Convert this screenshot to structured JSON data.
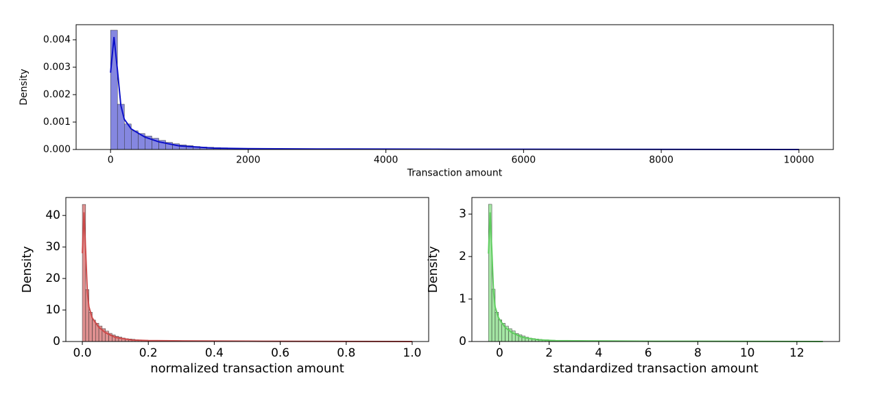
{
  "chart_data": [
    {
      "type": "histogram",
      "xlabel": "Transaction amount",
      "ylabel": "Density",
      "color": "#5c5fd6",
      "line_color": "#0c10c8",
      "bins": [
        0,
        100,
        200,
        300,
        400,
        500,
        600,
        700,
        800,
        900,
        1000,
        1100,
        1200,
        1300,
        1400,
        1500,
        1600,
        1700,
        1800,
        1900,
        2000,
        2100,
        2200,
        2300,
        2400,
        2500,
        2600,
        2700,
        2800,
        2900,
        3000,
        3100,
        3200,
        3300,
        3400,
        3500,
        3600,
        3700,
        3800,
        3900,
        4000,
        4100,
        4200,
        4300,
        4400,
        4500,
        4600,
        4700,
        4800,
        4900,
        5000,
        5100,
        5200,
        5300,
        5400,
        5500,
        5600,
        5700,
        5800,
        5900,
        6000,
        6100,
        6200,
        6300,
        6400,
        6500,
        6600,
        6700,
        6800,
        6900,
        7000,
        7100,
        7200,
        7300,
        7400,
        7500,
        7600,
        7700,
        7800,
        7900,
        8000,
        8100,
        8200,
        8300,
        8400,
        8500,
        8600,
        8700,
        8800,
        8900,
        9000,
        9100,
        9200,
        9300,
        9400,
        9500,
        9600,
        9700,
        9800,
        9900,
        10000
      ],
      "values": [
        0.00435,
        0.00165,
        0.00093,
        0.00068,
        0.00058,
        0.00049,
        0.00041,
        0.00033,
        0.00026,
        0.00021,
        0.00017,
        0.00014,
        0.00011,
        9e-05,
        8e-05,
        7e-05,
        6e-05,
        5e-05,
        4e-05,
        4e-05,
        3e-05,
        3e-05,
        3e-05,
        3e-05,
        3e-05,
        3e-05,
        3e-05,
        3e-05,
        3e-05,
        3e-05,
        2e-05,
        2e-05,
        2e-05,
        2e-05,
        2e-05,
        2e-05,
        2e-05,
        2e-05,
        2e-05,
        2e-05,
        1e-05,
        1e-05,
        1e-05,
        1e-05,
        1e-05,
        1e-05,
        1e-05,
        1e-05,
        1e-05,
        1e-05,
        1e-05,
        1e-05,
        1e-05,
        1e-05,
        1e-05,
        1e-05,
        1e-05,
        1e-05,
        1e-05,
        1e-05,
        0,
        0,
        0,
        0,
        0,
        0,
        0,
        0,
        0,
        0,
        0,
        0,
        0,
        0,
        0,
        0,
        0,
        0,
        0,
        0,
        0,
        0,
        0,
        0,
        0,
        0,
        0,
        0,
        0,
        0,
        0,
        0,
        0,
        0,
        0,
        0,
        0,
        0,
        0,
        0
      ],
      "kde": {
        "x": [
          0,
          50,
          100,
          150,
          200,
          300,
          400,
          500,
          700,
          1000,
          1500,
          2000,
          3000,
          5000,
          10000
        ],
        "values": [
          0.0028,
          0.0041,
          0.0029,
          0.0016,
          0.0011,
          0.00075,
          0.0006,
          0.00045,
          0.00028,
          0.00013,
          5e-05,
          3e-05,
          2e-05,
          1e-05,
          0
        ]
      },
      "xlim": [
        -500,
        10500
      ],
      "ylim": [
        0,
        0.00455
      ],
      "xticks": [
        0,
        2000,
        4000,
        6000,
        8000,
        10000
      ],
      "yticks": [
        {
          "value": 0,
          "label": "0.000"
        },
        {
          "value": 0.001,
          "label": "0.001"
        },
        {
          "value": 0.002,
          "label": "0.002"
        },
        {
          "value": 0.003,
          "label": "0.003"
        },
        {
          "value": 0.004,
          "label": "0.004"
        }
      ]
    },
    {
      "type": "histogram",
      "xlabel": "normalized transaction amount",
      "ylabel": "Density",
      "color": "#d46b6b",
      "line_color": "#cc4a4a",
      "bins": [
        0,
        0.01,
        0.02,
        0.03,
        0.04,
        0.05,
        0.06,
        0.07,
        0.08,
        0.09,
        0.1,
        0.11,
        0.12,
        0.13,
        0.14,
        0.15,
        0.16,
        0.17,
        0.18,
        0.19,
        0.2,
        0.21,
        0.22,
        0.23,
        0.24,
        0.25,
        0.26,
        0.27,
        0.28,
        0.29,
        0.3,
        0.31,
        0.32,
        0.33,
        0.34,
        0.35,
        0.36,
        0.37,
        0.38,
        0.39,
        0.4,
        0.41,
        0.42,
        0.43,
        0.44,
        0.45,
        0.46,
        0.47,
        0.48,
        0.49,
        0.5,
        0.51,
        0.52,
        0.53,
        0.54,
        0.55,
        0.56,
        0.57,
        0.58,
        0.59,
        0.6,
        0.61,
        0.62,
        0.63,
        0.64,
        0.65,
        0.66,
        0.67,
        0.68,
        0.69,
        0.7,
        0.71,
        0.72,
        0.73,
        0.74,
        0.75,
        0.76,
        0.77,
        0.78,
        0.79,
        0.8,
        0.81,
        0.82,
        0.83,
        0.84,
        0.85,
        0.86,
        0.87,
        0.88,
        0.89,
        0.9,
        0.91,
        0.92,
        0.93,
        0.94,
        0.95,
        0.96,
        0.97,
        0.98,
        0.99,
        1
      ],
      "values": [
        43.5,
        16.5,
        9.3,
        6.8,
        5.8,
        4.9,
        4.1,
        3.3,
        2.6,
        2.1,
        1.7,
        1.4,
        1.1,
        0.9,
        0.8,
        0.7,
        0.6,
        0.5,
        0.4,
        0.4,
        0.3,
        0.3,
        0.3,
        0.3,
        0.3,
        0.3,
        0.3,
        0.3,
        0.3,
        0.3,
        0.2,
        0.2,
        0.2,
        0.2,
        0.2,
        0.2,
        0.2,
        0.2,
        0.2,
        0.2,
        0.1,
        0.1,
        0.1,
        0.1,
        0.1,
        0.1,
        0.1,
        0.1,
        0.1,
        0.1,
        0.1,
        0.1,
        0.1,
        0.1,
        0.1,
        0.1,
        0.1,
        0.1,
        0.1,
        0.1,
        0,
        0,
        0,
        0,
        0,
        0,
        0,
        0,
        0,
        0,
        0,
        0,
        0,
        0,
        0,
        0,
        0,
        0,
        0,
        0,
        0,
        0,
        0,
        0,
        0,
        0,
        0,
        0,
        0,
        0,
        0,
        0,
        0,
        0,
        0,
        0,
        0,
        0,
        0,
        0
      ],
      "kde": {
        "x": [
          0,
          0.005,
          0.01,
          0.015,
          0.02,
          0.03,
          0.04,
          0.05,
          0.07,
          0.1,
          0.15,
          0.2,
          0.3,
          0.5,
          1
        ],
        "values": [
          28,
          41,
          29,
          16,
          11,
          7.5,
          6,
          4.5,
          2.8,
          1.3,
          0.5,
          0.3,
          0.2,
          0.1,
          0
        ]
      },
      "xlim": [
        -0.05,
        1.05
      ],
      "ylim": [
        0,
        45.7
      ],
      "xticks": [
        {
          "value": 0,
          "label": "0.0"
        },
        0.2,
        0.4,
        0.6,
        0.8,
        {
          "value": 1,
          "label": "1.0"
        }
      ],
      "yticks": [
        0,
        10,
        20,
        30,
        40
      ]
    },
    {
      "type": "histogram",
      "xlabel": "standardized transaction amount",
      "ylabel": "Density",
      "color": "#86dd86",
      "line_color": "#5fcc5f",
      "bins": [
        -0.45,
        -0.315,
        -0.18,
        -0.045,
        0.09,
        0.225,
        0.36,
        0.495,
        0.63,
        0.765,
        0.9,
        1.035,
        1.17,
        1.305,
        1.44,
        1.575,
        1.71,
        1.845,
        1.98,
        2.115,
        2.25,
        2.385,
        2.52,
        2.655,
        2.79,
        2.925,
        3.06,
        3.195,
        3.33,
        3.465,
        3.6,
        3.735,
        3.87,
        4.005,
        4.14,
        4.275,
        4.41,
        4.545,
        4.68,
        4.815,
        4.95,
        5.085,
        5.22,
        5.355,
        5.49,
        5.625,
        5.76,
        5.895,
        6.03,
        6.165,
        6.3,
        6.435,
        6.57,
        6.705,
        6.84,
        6.975,
        7.11,
        7.245,
        7.38,
        7.515,
        7.65,
        7.785,
        7.92,
        8.055,
        8.19,
        8.325,
        8.46,
        8.595,
        8.73,
        8.865,
        9,
        9.135,
        9.27,
        9.405,
        9.54,
        9.675,
        9.81,
        9.945,
        10.08,
        10.215,
        10.35,
        10.485,
        10.62,
        10.755,
        10.89,
        11.025,
        11.16,
        11.295,
        11.43,
        11.565,
        11.7,
        11.835,
        11.97,
        12.105,
        12.24,
        12.375,
        12.51,
        12.645,
        12.78,
        12.915,
        13.05
      ],
      "values": [
        3.23,
        1.23,
        0.69,
        0.51,
        0.43,
        0.36,
        0.3,
        0.25,
        0.19,
        0.16,
        0.13,
        0.1,
        0.08,
        0.07,
        0.06,
        0.05,
        0.04,
        0.04,
        0.03,
        0.03,
        0.02,
        0.02,
        0.02,
        0.02,
        0.02,
        0.02,
        0.02,
        0.02,
        0.02,
        0.02,
        0.015,
        0.015,
        0.015,
        0.015,
        0.015,
        0.015,
        0.015,
        0.015,
        0.015,
        0.015,
        0.007,
        0.007,
        0.007,
        0.007,
        0.007,
        0.007,
        0.007,
        0.007,
        0.007,
        0.007,
        0.007,
        0.007,
        0.007,
        0.007,
        0.007,
        0.007,
        0.007,
        0.007,
        0.007,
        0.007,
        0,
        0,
        0,
        0,
        0,
        0,
        0,
        0,
        0,
        0,
        0,
        0,
        0,
        0,
        0,
        0,
        0,
        0,
        0,
        0,
        0,
        0,
        0,
        0,
        0,
        0,
        0,
        0,
        0,
        0,
        0,
        0,
        0,
        0,
        0,
        0,
        0,
        0,
        0,
        0
      ],
      "kde": {
        "x": [
          -0.45,
          -0.3825,
          -0.315,
          -0.2475,
          -0.18,
          -0.045,
          0.09,
          0.225,
          0.495,
          0.9,
          1.575,
          2.25,
          3.6,
          6.3,
          13.05
        ],
        "values": [
          2.07,
          3.04,
          2.15,
          1.19,
          0.81,
          0.56,
          0.44,
          0.33,
          0.21,
          0.1,
          0.04,
          0.02,
          0.015,
          0.007,
          0
        ]
      },
      "xlim": [
        -1.12,
        13.72
      ],
      "ylim": [
        0,
        3.39
      ],
      "xticks": [
        0,
        2,
        4,
        6,
        8,
        10,
        12
      ],
      "yticks": [
        0,
        1,
        2,
        3
      ]
    }
  ]
}
